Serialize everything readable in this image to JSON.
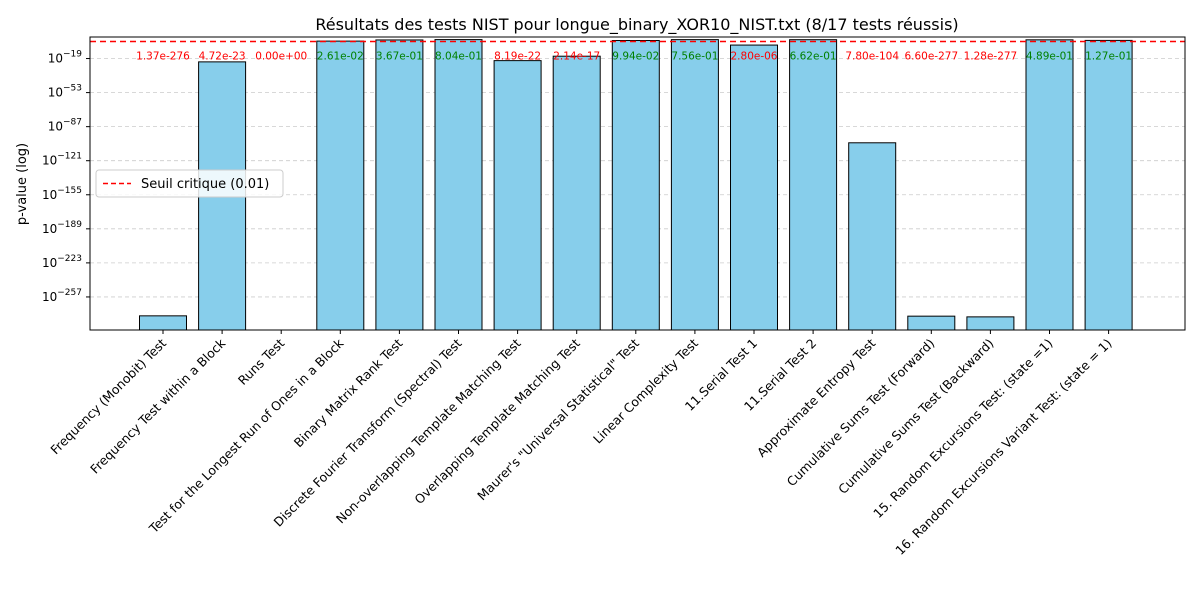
{
  "chart_data": {
    "type": "bar",
    "title": "Résultats des tests NIST pour longue_binary_XOR10_NIST.txt (8/17 tests réussis)",
    "ylabel": "p-value (log)",
    "xlabel": "",
    "yscale": "log10",
    "ylim_log10": [
      -290,
      2.5
    ],
    "yticks": [
      {
        "exp": -19,
        "label": "10",
        "sup": "−19"
      },
      {
        "exp": -53,
        "label": "10",
        "sup": "−53"
      },
      {
        "exp": -87,
        "label": "10",
        "sup": "−87"
      },
      {
        "exp": -121,
        "label": "10",
        "sup": "−121"
      },
      {
        "exp": -155,
        "label": "10",
        "sup": "−155"
      },
      {
        "exp": -189,
        "label": "10",
        "sup": "−189"
      },
      {
        "exp": -223,
        "label": "10",
        "sup": "−223"
      },
      {
        "exp": -257,
        "label": "10",
        "sup": "−257"
      }
    ],
    "grid": "y-dashed",
    "bar_color": "#87CEEB",
    "bar_edge_color": "#000000",
    "pass_color": "#008000",
    "fail_color": "#FF0000",
    "threshold": {
      "value": 0.01,
      "label": "Seuil critique (0.01)",
      "color": "#FF0000"
    },
    "legend_placement": "center-left",
    "bars": [
      {
        "category": "Frequency (Monobit) Test",
        "p_value": 1.37e-276,
        "label": "1.37e-276",
        "pass": false
      },
      {
        "category": "Frequency Test within a Block",
        "p_value": 4.72e-23,
        "label": "4.72e-23",
        "pass": false
      },
      {
        "category": "Runs Test",
        "p_value": 0,
        "label": "0.00e+00",
        "pass": false
      },
      {
        "category": "Test for the Longest Run of Ones in a Block",
        "p_value": 0.0261,
        "label": "2.61e-02",
        "pass": true
      },
      {
        "category": "Binary Matrix Rank Test",
        "p_value": 0.367,
        "label": "3.67e-01",
        "pass": true
      },
      {
        "category": "Discrete Fourier Transform (Spectral) Test",
        "p_value": 0.804,
        "label": "8.04e-01",
        "pass": true
      },
      {
        "category": "Non-overlapping Template Matching Test",
        "p_value": 8.19e-22,
        "label": "8.19e-22",
        "pass": false
      },
      {
        "category": "Overlapping Template Matching Test",
        "p_value": 2.14e-17,
        "label": "2.14e-17",
        "pass": false
      },
      {
        "category": "Maurer's \"Universal Statistical\" Test",
        "p_value": 0.0994,
        "label": "9.94e-02",
        "pass": true
      },
      {
        "category": "Linear Complexity Test",
        "p_value": 0.756,
        "label": "7.56e-01",
        "pass": true
      },
      {
        "category": "11.Serial Test 1",
        "p_value": 2.8e-06,
        "label": "2.80e-06",
        "pass": false
      },
      {
        "category": "11.Serial Test 2",
        "p_value": 0.662,
        "label": "6.62e-01",
        "pass": true
      },
      {
        "category": "Approximate Entropy Test",
        "p_value": 7.8e-104,
        "label": "7.80e-104",
        "pass": false
      },
      {
        "category": "Cumulative Sums Test (Forward)",
        "p_value": 6.6e-277,
        "label": "6.60e-277",
        "pass": false
      },
      {
        "category": "Cumulative Sums Test (Backward)",
        "p_value": 1.28e-277,
        "label": "1.28e-277",
        "pass": false
      },
      {
        "category": "15. Random Excursions Test: (state =1)",
        "p_value": 0.489,
        "label": "4.89e-01",
        "pass": true
      },
      {
        "category": "16. Random Excursions Variant Test: (state = 1)",
        "p_value": 0.127,
        "label": "1.27e-01",
        "pass": true
      }
    ]
  }
}
